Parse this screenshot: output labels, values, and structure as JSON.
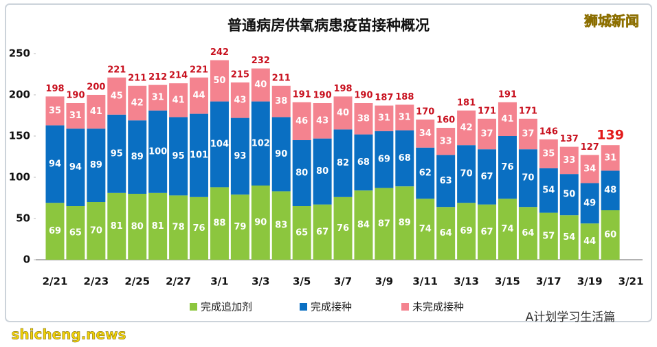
{
  "chart_data": {
    "type": "stacked_bar",
    "title": "普通病房供氧病患疫苗接种概况",
    "brand": "狮城新闻",
    "watermark": "shicheng.news",
    "account": "A计划学习生活篇",
    "categories": [
      "2/21",
      null,
      "2/23",
      null,
      "2/25",
      null,
      "2/27",
      null,
      "3/1",
      null,
      "3/3",
      null,
      "3/5",
      null,
      "3/7",
      null,
      "3/9",
      null,
      "3/11",
      null,
      "3/13",
      null,
      "3/15",
      null,
      "3/17",
      null,
      "3/19",
      null,
      "3/21"
    ],
    "series": [
      {
        "name": "完成追加剂",
        "color": "#8cc63e",
        "values": [
          69,
          65,
          70,
          81,
          80,
          81,
          78,
          76,
          88,
          79,
          90,
          83,
          65,
          67,
          76,
          84,
          87,
          89,
          74,
          64,
          69,
          67,
          74,
          64,
          57,
          54,
          44,
          60,
          null
        ]
      },
      {
        "name": "完成接种",
        "color": "#0a6fc2",
        "values": [
          94,
          94,
          89,
          95,
          89,
          100,
          95,
          101,
          104,
          93,
          102,
          90,
          80,
          80,
          82,
          68,
          69,
          68,
          62,
          63,
          70,
          67,
          76,
          70,
          54,
          50,
          49,
          48,
          null
        ]
      },
      {
        "name": "未完成接种",
        "color": "#f4838f",
        "values": [
          35,
          31,
          41,
          45,
          42,
          31,
          41,
          44,
          50,
          43,
          40,
          38,
          46,
          43,
          40,
          38,
          31,
          31,
          34,
          33,
          42,
          37,
          41,
          37,
          35,
          33,
          34,
          31,
          null
        ]
      }
    ],
    "totals": [
      198,
      190,
      200,
      221,
      211,
      212,
      214,
      221,
      242,
      215,
      232,
      211,
      191,
      190,
      198,
      190,
      187,
      188,
      170,
      160,
      181,
      171,
      191,
      171,
      146,
      137,
      127,
      139,
      null
    ],
    "ylim": [
      0,
      250
    ],
    "yticks": [
      0,
      50,
      100,
      150,
      200,
      250
    ],
    "legend": "bottom"
  }
}
